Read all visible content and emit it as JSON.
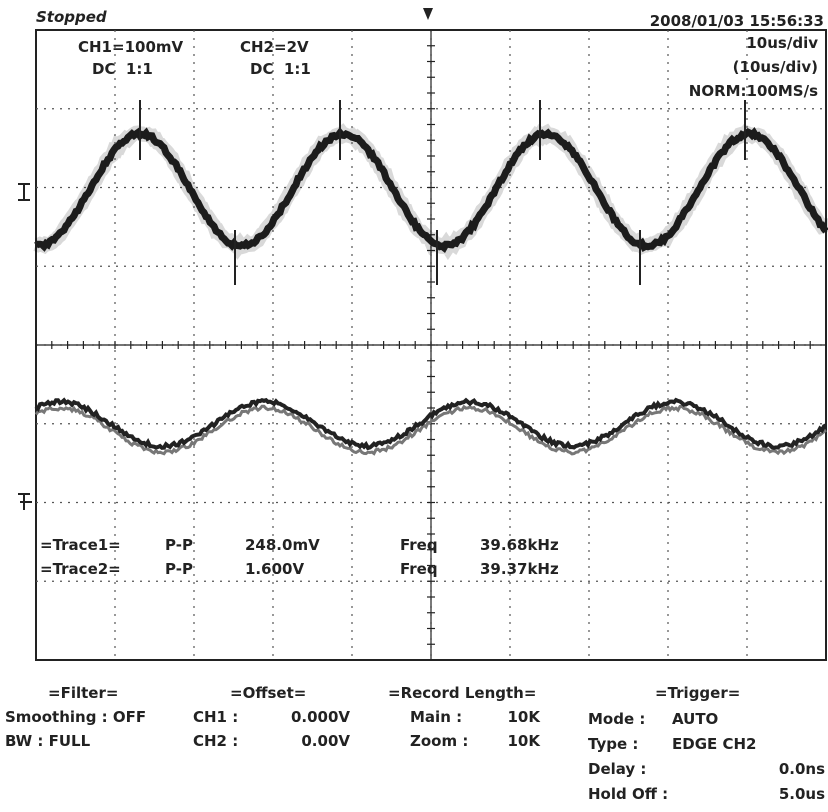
{
  "status": "Stopped",
  "datetime": "2008/01/03 15:56:33",
  "channels": [
    {
      "scale": "CH1=100mV",
      "coupling": "DC  1:1"
    },
    {
      "scale": "CH2=2V",
      "coupling": "DC  1:1"
    }
  ],
  "timebase": {
    "div": "10us/div",
    "actual": "(10us/div)",
    "mode": "NORM:100MS/s"
  },
  "measurements": [
    {
      "trace": "=Trace1=",
      "type": "P-P",
      "value": "248.0mV",
      "freq_label": "Freq",
      "freq": "39.68kHz"
    },
    {
      "trace": "=Trace2=",
      "type": "P-P",
      "value": "1.600V",
      "freq_label": "Freq",
      "freq": "39.37kHz"
    }
  ],
  "footer": {
    "filter": {
      "title": "=Filter=",
      "rows": [
        "Smoothing : OFF",
        "BW : FULL"
      ]
    },
    "offset": {
      "title": "=Offset=",
      "rows": [
        [
          "CH1 :",
          "0.000V"
        ],
        [
          "CH2 :",
          "0.00V"
        ]
      ]
    },
    "record": {
      "title": "=Record Length=",
      "rows": [
        [
          "Main :",
          "10K"
        ],
        [
          "Zoom :",
          "10K"
        ]
      ]
    },
    "trigger": {
      "title": "=Trigger=",
      "rows": [
        [
          "Mode :",
          "AUTO"
        ],
        [
          "Type :",
          "EDGE CH2"
        ],
        [
          "Delay :",
          "0.0ns"
        ],
        [
          "Hold Off :",
          "5.0us"
        ]
      ]
    }
  }
}
